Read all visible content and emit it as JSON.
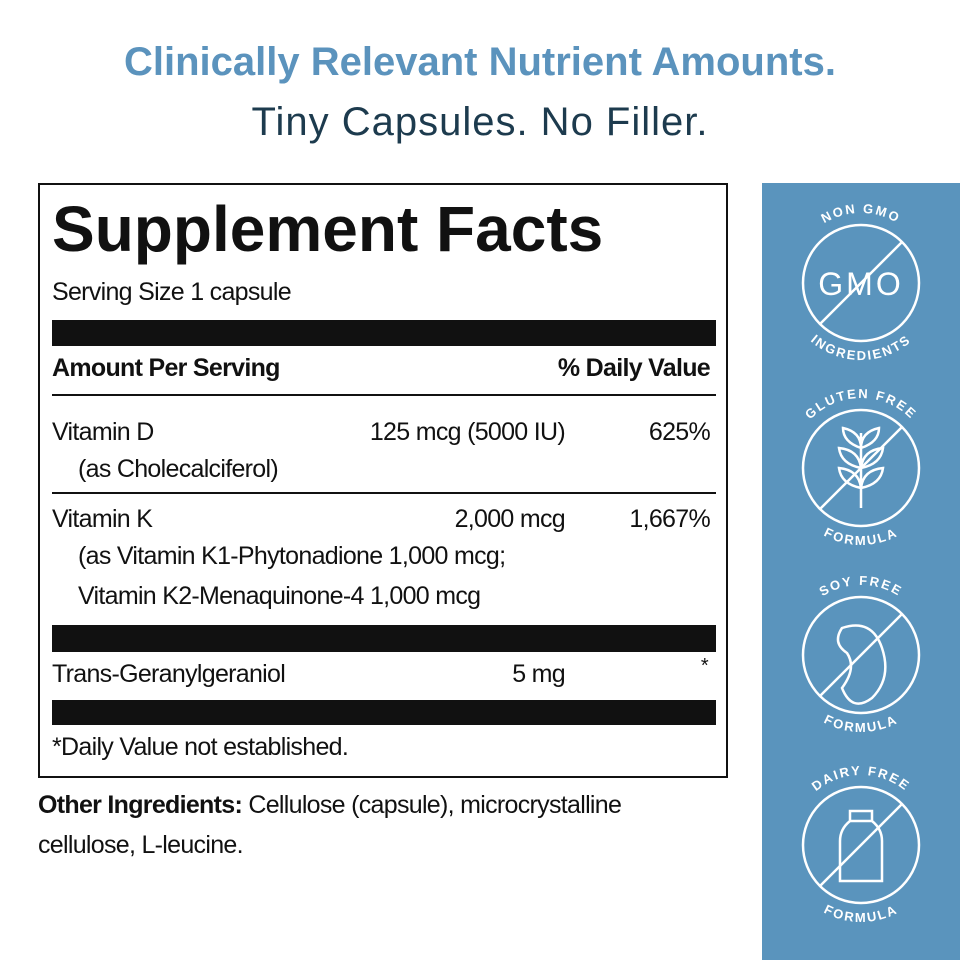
{
  "header": {
    "title": "Clinically Relevant Nutrient Amounts.",
    "subtitle": "Tiny Capsules. No Filler."
  },
  "facts": {
    "title": "Supplement Facts",
    "serving": "Serving Size 1 capsule",
    "amount_header": "Amount Per Serving",
    "dv_header": "% Daily Value",
    "rows": [
      {
        "name": "Vitamin D",
        "details": [
          "(as Cholecalciferol)"
        ],
        "amount": "125 mcg (5000 IU)",
        "dv": "625%"
      },
      {
        "name": "Vitamin K",
        "details": [
          "(as Vitamin K1-Phytonadione 1,000 mcg;",
          "Vitamin K2-Menaquinone-4 1,000 mcg"
        ],
        "amount": "2,000 mcg",
        "dv": "1,667%"
      },
      {
        "name": "Trans-Geranylgeraniol",
        "details": [],
        "amount": "5 mg",
        "dv": "*"
      }
    ],
    "footnote": "*Daily Value not established."
  },
  "other_ingredients": {
    "label": "Other Ingredients:",
    "text": "Cellulose (capsule), microcrystalline cellulose, L-leucine."
  },
  "badges": [
    {
      "top": "NON GMO",
      "center": "GMO",
      "bottom": "INGREDIENTS"
    },
    {
      "top": "GLUTEN FREE",
      "bottom": "FORMULA"
    },
    {
      "top": "SOY FREE",
      "bottom": "FORMULA"
    },
    {
      "top": "DAIRY FREE",
      "bottom": "FORMULA"
    }
  ]
}
